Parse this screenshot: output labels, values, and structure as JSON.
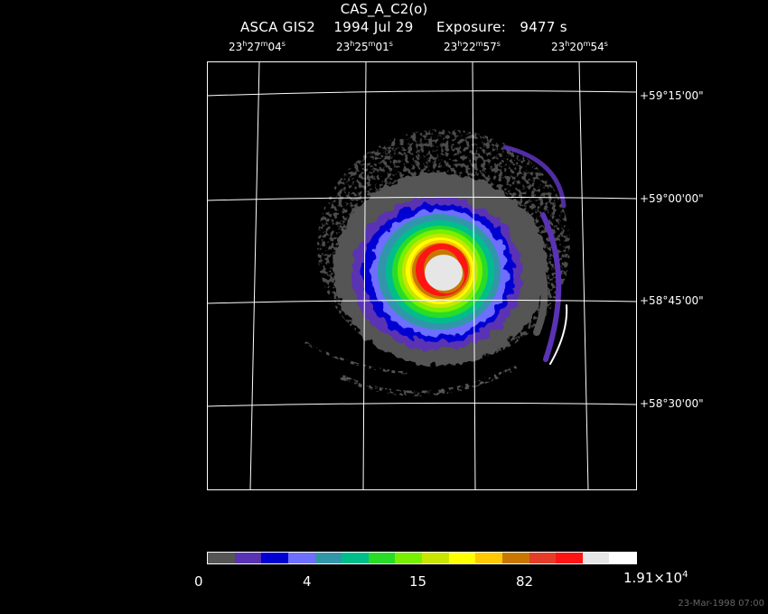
{
  "title": "CAS_A_C2(o)",
  "subtitle": {
    "instrument": "ASCA GIS2",
    "date": "1994 Jul 29",
    "exposure_label": "Exposure:",
    "exposure_value": "9477 s"
  },
  "ra_labels": [
    {
      "h": "23",
      "m": "27",
      "s": "04"
    },
    {
      "h": "23",
      "m": "25",
      "s": "01"
    },
    {
      "h": "23",
      "m": "22",
      "s": "57"
    },
    {
      "h": "23",
      "m": "20",
      "s": "54"
    }
  ],
  "units": {
    "h": "h",
    "m": "m",
    "s": "s"
  },
  "dec_labels": [
    "+59°15'00\"",
    "+59°00'00\"",
    "+58°45'00\"",
    "+58°30'00\""
  ],
  "colorbar": {
    "colors": [
      "#555555",
      "#5a32b4",
      "#0000d2",
      "#6e6eff",
      "#3296aa",
      "#00be8c",
      "#28dc28",
      "#78f000",
      "#c8e600",
      "#ffff00",
      "#ffc800",
      "#c87800",
      "#e63c28",
      "#ff1414",
      "#e6e6e6",
      "#ffffff"
    ],
    "labels": [
      "0",
      "4",
      "15",
      "82"
    ],
    "max_label_mantissa": "1.91×10",
    "max_label_exp": "4"
  },
  "timestamp": "23-Mar-1998 07:00"
}
